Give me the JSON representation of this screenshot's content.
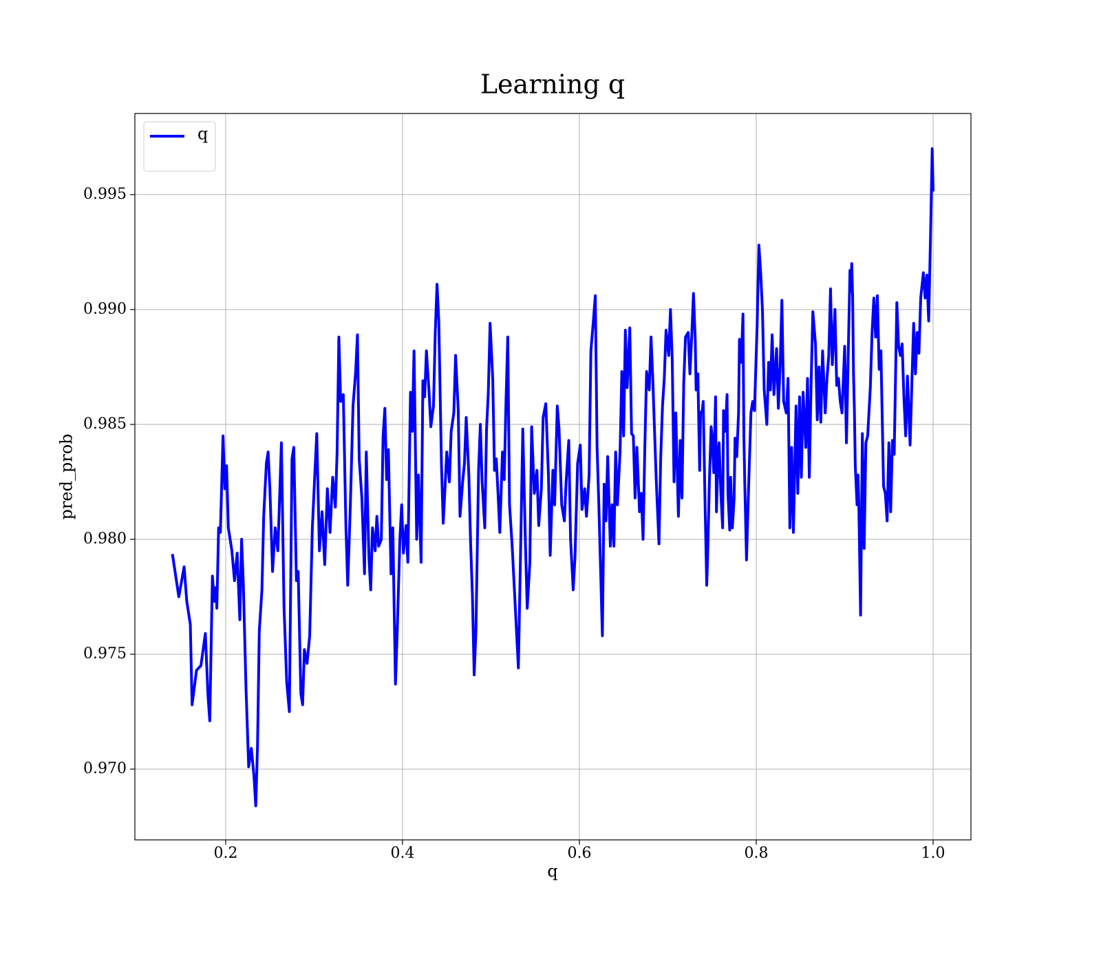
{
  "chart_data": {
    "type": "line",
    "title": "Learning q",
    "xlabel": "q",
    "ylabel": "pred_prob",
    "xlim": [
      0.0973,
      1.0428
    ],
    "ylim": [
      0.96692,
      0.99853
    ],
    "xticks": [
      0.2,
      0.4,
      0.6,
      0.8,
      {
        "value": 1,
        "label": "1.0"
      }
    ],
    "yticks": [
      {
        "value": 0.97,
        "label": "0.970"
      },
      0.975,
      {
        "value": 0.98,
        "label": "0.980"
      },
      0.985,
      {
        "value": 0.99,
        "label": "0.990"
      },
      0.995
    ],
    "grid": true,
    "legend": "upper left",
    "x": [
      0.14,
      0.147,
      0.153,
      0.156,
      0.16,
      0.162,
      0.167,
      0.172,
      0.177,
      0.18,
      0.182,
      0.185,
      0.187,
      0.189,
      0.19,
      0.192,
      0.194,
      0.197,
      0.199,
      0.201,
      0.203,
      0.207,
      0.21,
      0.213,
      0.216,
      0.218,
      0.22,
      0.223,
      0.226,
      0.229,
      0.232,
      0.234,
      0.236,
      0.238,
      0.241,
      0.243,
      0.246,
      0.248,
      0.25,
      0.253,
      0.256,
      0.259,
      0.263,
      0.266,
      0.269,
      0.272,
      0.275,
      0.277,
      0.28,
      0.282,
      0.285,
      0.287,
      0.289,
      0.292,
      0.295,
      0.298,
      0.301,
      0.303,
      0.306,
      0.309,
      0.312,
      0.315,
      0.318,
      0.321,
      0.324,
      0.326,
      0.328,
      0.33,
      0.333,
      0.336,
      0.338,
      0.341,
      0.344,
      0.347,
      0.349,
      0.351,
      0.354,
      0.357,
      0.359,
      0.362,
      0.364,
      0.366,
      0.369,
      0.371,
      0.373,
      0.376,
      0.378,
      0.38,
      0.382,
      0.384,
      0.387,
      0.389,
      0.392,
      0.394,
      0.397,
      0.399,
      0.401,
      0.404,
      0.406,
      0.409,
      0.411,
      0.413,
      0.416,
      0.418,
      0.421,
      0.423,
      0.425,
      0.427,
      0.43,
      0.432,
      0.435,
      0.437,
      0.439,
      0.441,
      0.444,
      0.446,
      0.448,
      0.45,
      0.453,
      0.455,
      0.458,
      0.46,
      0.463,
      0.465,
      0.468,
      0.47,
      0.472,
      0.475,
      0.477,
      0.479,
      0.481,
      0.483,
      0.486,
      0.488,
      0.49,
      0.493,
      0.495,
      0.497,
      0.499,
      0.502,
      0.504,
      0.506,
      0.508,
      0.51,
      0.513,
      0.515,
      0.517,
      0.519,
      0.521,
      0.524,
      0.531,
      0.534,
      0.536,
      0.539,
      0.541,
      0.544,
      0.546,
      0.549,
      0.552,
      0.554,
      0.557,
      0.559,
      0.562,
      0.565,
      0.567,
      0.57,
      0.572,
      0.575,
      0.577,
      0.58,
      0.583,
      0.585,
      0.588,
      0.59,
      0.593,
      0.595,
      0.598,
      0.601,
      0.603,
      0.606,
      0.608,
      0.611,
      0.613,
      0.616,
      0.618,
      0.62,
      0.622,
      0.626,
      0.628,
      0.63,
      0.632,
      0.635,
      0.637,
      0.639,
      0.641,
      0.643,
      0.646,
      0.648,
      0.65,
      0.652,
      0.654,
      0.657,
      0.659,
      0.661,
      0.663,
      0.665,
      0.668,
      0.67,
      0.672,
      0.674,
      0.676,
      0.679,
      0.681,
      0.683,
      0.685,
      0.687,
      0.69,
      0.692,
      0.694,
      0.696,
      0.698,
      0.701,
      0.703,
      0.705,
      0.707,
      0.709,
      0.712,
      0.714,
      0.716,
      0.718,
      0.72,
      0.723,
      0.725,
      0.727,
      0.729,
      0.731,
      0.732,
      0.734,
      0.736,
      0.737,
      0.739,
      0.74,
      0.742,
      0.744,
      0.745,
      0.747,
      0.749,
      0.75,
      0.752,
      0.754,
      0.755,
      0.757,
      0.758,
      0.76,
      0.762,
      0.763,
      0.765,
      0.767,
      0.768,
      0.77,
      0.771,
      0.773,
      0.775,
      0.776,
      0.778,
      0.78,
      0.781,
      0.783,
      0.785,
      0.786,
      0.787,
      0.789,
      0.791,
      0.794,
      0.796,
      0.798,
      0.801,
      0.803,
      0.805,
      0.807,
      0.809,
      0.812,
      0.814,
      0.816,
      0.818,
      0.82,
      0.823,
      0.825,
      0.827,
      0.829,
      0.831,
      0.834,
      0.836,
      0.838,
      0.84,
      0.842,
      0.845,
      0.847,
      0.849,
      0.851,
      0.853,
      0.856,
      0.858,
      0.86,
      0.862,
      0.864,
      0.867,
      0.869,
      0.871,
      0.873,
      0.875,
      0.878,
      0.88,
      0.882,
      0.884,
      0.886,
      0.889,
      0.891,
      0.893,
      0.895,
      0.897,
      0.9,
      0.902,
      0.904,
      0.906,
      0.907,
      0.908,
      0.909,
      0.91,
      0.911,
      0.912,
      0.914,
      0.915,
      0.916,
      0.918,
      0.92,
      0.922,
      0.924,
      0.926,
      0.929,
      0.931,
      0.933,
      0.935,
      0.937,
      0.939,
      0.941,
      0.944,
      0.946,
      0.948,
      0.95,
      0.952,
      0.954,
      0.956,
      0.959,
      0.961,
      0.963,
      0.965,
      0.967,
      0.969,
      0.971,
      0.974,
      0.976,
      0.978,
      0.98,
      0.982,
      0.984,
      0.986,
      0.989,
      0.991,
      0.993,
      0.995,
      0.997,
      0.999,
      1.0
    ],
    "series": [
      {
        "name": "q",
        "color": "#0000ff",
        "values": [
          0.9793,
          0.9775,
          0.9788,
          0.9773,
          0.9763,
          0.9728,
          0.9743,
          0.9745,
          0.9759,
          0.9732,
          0.9721,
          0.9784,
          0.9773,
          0.9779,
          0.977,
          0.9805,
          0.9803,
          0.9845,
          0.9822,
          0.9832,
          0.9805,
          0.9795,
          0.9782,
          0.9794,
          0.9765,
          0.98,
          0.978,
          0.9735,
          0.9701,
          0.9709,
          0.9697,
          0.9684,
          0.971,
          0.976,
          0.9778,
          0.981,
          0.9833,
          0.9838,
          0.9822,
          0.9786,
          0.9805,
          0.9795,
          0.9842,
          0.977,
          0.9738,
          0.9725,
          0.9835,
          0.984,
          0.9782,
          0.9786,
          0.9733,
          0.9728,
          0.9752,
          0.9746,
          0.9758,
          0.9805,
          0.983,
          0.9846,
          0.9795,
          0.9812,
          0.9789,
          0.9822,
          0.9803,
          0.9827,
          0.9814,
          0.9838,
          0.9888,
          0.986,
          0.9863,
          0.9805,
          0.978,
          0.9815,
          0.9858,
          0.9873,
          0.9889,
          0.9835,
          0.9818,
          0.9785,
          0.9838,
          0.9792,
          0.9778,
          0.9805,
          0.9795,
          0.981,
          0.9797,
          0.98,
          0.9845,
          0.9857,
          0.9826,
          0.9839,
          0.9785,
          0.9805,
          0.9737,
          0.976,
          0.98,
          0.9815,
          0.9794,
          0.9806,
          0.979,
          0.9864,
          0.9847,
          0.9882,
          0.98,
          0.9828,
          0.979,
          0.9869,
          0.9862,
          0.9882,
          0.9864,
          0.9849,
          0.9858,
          0.989,
          0.9911,
          0.9895,
          0.9833,
          0.9807,
          0.9822,
          0.9838,
          0.9825,
          0.9847,
          0.9855,
          0.988,
          0.9856,
          0.981,
          0.9825,
          0.9833,
          0.9853,
          0.9828,
          0.9798,
          0.9776,
          0.9741,
          0.976,
          0.983,
          0.985,
          0.9825,
          0.9805,
          0.9848,
          0.9864,
          0.9894,
          0.987,
          0.983,
          0.9835,
          0.982,
          0.9803,
          0.9838,
          0.9826,
          0.986,
          0.9888,
          0.9815,
          0.9797,
          0.9744,
          0.9805,
          0.9848,
          0.9798,
          0.977,
          0.979,
          0.9849,
          0.982,
          0.983,
          0.9806,
          0.9822,
          0.9853,
          0.9859,
          0.9828,
          0.9793,
          0.983,
          0.9815,
          0.9858,
          0.9848,
          0.9815,
          0.9808,
          0.9825,
          0.9843,
          0.98,
          0.9778,
          0.9792,
          0.9833,
          0.9841,
          0.9813,
          0.9822,
          0.981,
          0.9828,
          0.9882,
          0.9896,
          0.9906,
          0.984,
          0.9815,
          0.9758,
          0.9824,
          0.9808,
          0.9836,
          0.9797,
          0.9815,
          0.9797,
          0.9838,
          0.9815,
          0.9838,
          0.9873,
          0.9845,
          0.9891,
          0.9866,
          0.9892,
          0.9846,
          0.9845,
          0.9818,
          0.984,
          0.9812,
          0.982,
          0.98,
          0.984,
          0.9873,
          0.9865,
          0.9888,
          0.987,
          0.9847,
          0.9825,
          0.9798,
          0.9836,
          0.9858,
          0.987,
          0.9891,
          0.988,
          0.99,
          0.9878,
          0.9825,
          0.9855,
          0.981,
          0.9843,
          0.9818,
          0.9868,
          0.9888,
          0.989,
          0.9872,
          0.9888,
          0.9907,
          0.9887,
          0.9865,
          0.9872,
          0.983,
          0.9855,
          0.9856,
          0.986,
          0.9818,
          0.978,
          0.9792,
          0.9825,
          0.9849,
          0.9845,
          0.9829,
          0.9862,
          0.9812,
          0.9838,
          0.9842,
          0.982,
          0.9805,
          0.9856,
          0.9847,
          0.9863,
          0.982,
          0.9804,
          0.9827,
          0.9805,
          0.9818,
          0.9844,
          0.9836,
          0.9855,
          0.9887,
          0.9877,
          0.9898,
          0.9845,
          0.9825,
          0.9791,
          0.9818,
          0.9855,
          0.986,
          0.9856,
          0.9893,
          0.9928,
          0.9916,
          0.99,
          0.9865,
          0.985,
          0.9877,
          0.9865,
          0.9889,
          0.9863,
          0.9883,
          0.9857,
          0.9875,
          0.9904,
          0.986,
          0.9855,
          0.987,
          0.9805,
          0.984,
          0.9803,
          0.9858,
          0.982,
          0.9862,
          0.9827,
          0.9864,
          0.984,
          0.987,
          0.9827,
          0.9867,
          0.9899,
          0.9885,
          0.9852,
          0.9875,
          0.9851,
          0.9882,
          0.9855,
          0.987,
          0.988,
          0.9909,
          0.9876,
          0.99,
          0.9867,
          0.987,
          0.986,
          0.9855,
          0.9884,
          0.9842,
          0.988,
          0.9917,
          0.9908,
          0.992,
          0.9906,
          0.9872,
          0.9856,
          0.9832,
          0.9815,
          0.9828,
          0.9815,
          0.9767,
          0.9846,
          0.9796,
          0.9842,
          0.9845,
          0.9866,
          0.989,
          0.9905,
          0.9888,
          0.9906,
          0.9874,
          0.9882,
          0.9823,
          0.982,
          0.9808,
          0.9842,
          0.9812,
          0.9843,
          0.9837,
          0.9903,
          0.9884,
          0.988,
          0.9885,
          0.9862,
          0.9845,
          0.9871,
          0.9841,
          0.9868,
          0.9894,
          0.9872,
          0.989,
          0.9881,
          0.9905,
          0.9916,
          0.9905,
          0.9915,
          0.9895,
          0.993,
          0.997,
          0.9952
        ]
      }
    ]
  }
}
